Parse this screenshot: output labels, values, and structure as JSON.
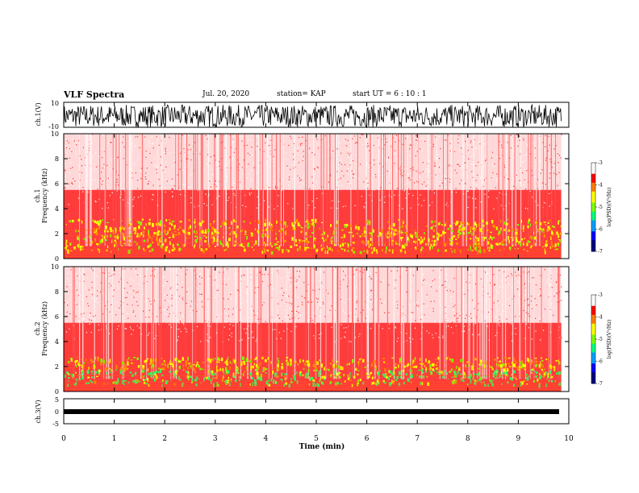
{
  "header": {
    "title": "VLF Spectra",
    "date": "Jul. 20, 2020",
    "station": "station= KAP",
    "start": "start  UT =   6  : 10 : 1"
  },
  "chart_data": [
    {
      "type": "line",
      "panel": "ch1-waveform",
      "ylabel": "ch.1(V)",
      "ylim": [
        -10,
        10
      ],
      "yticks": [
        "10",
        "-10"
      ],
      "xlim": [
        0,
        10
      ],
      "description_values": {
        "signal": "dense noise saturating between about -10 and 8 V"
      }
    },
    {
      "type": "heatmap",
      "panel": "ch1-spectrogram",
      "ylabel": "ch.1\nFrequency (kHz)",
      "ylim": [
        0,
        10
      ],
      "yticks": [
        "0",
        "2",
        "4",
        "6",
        "8",
        "10"
      ],
      "xlim": [
        0,
        10
      ],
      "intense_band_khz": [
        0.5,
        3.2
      ],
      "colorbar": {
        "label": "log(PSD)(V²/Hz)",
        "range": [
          -7,
          -3
        ],
        "ticks": [
          "-3",
          "-4",
          "-5",
          "-6",
          "-7"
        ]
      }
    },
    {
      "type": "heatmap",
      "panel": "ch2-spectrogram",
      "ylabel": "ch.2\nFrequency (kHz)",
      "ylim": [
        0,
        10
      ],
      "yticks": [
        "0",
        "2",
        "4",
        "6",
        "8",
        "10"
      ],
      "xlim": [
        0,
        10
      ],
      "intense_band_khz": [
        0.5,
        2.8
      ],
      "colorbar": {
        "label": "log(PSD)(V²/Hz)",
        "range": [
          -7,
          -3
        ],
        "ticks": [
          "-3",
          "-4",
          "-5",
          "-6",
          "-7"
        ]
      }
    },
    {
      "type": "line",
      "panel": "ch3-waveform",
      "ylabel": "ch.3(V)",
      "ylim": [
        -5,
        5
      ],
      "yticks": [
        "5",
        "0",
        "-5"
      ],
      "xlim": [
        0,
        10
      ],
      "description_values": {
        "signal": "narrow band around -1 V"
      }
    }
  ],
  "xaxis": {
    "label": "Time (min)",
    "ticks": [
      "0",
      "1",
      "2",
      "3",
      "4",
      "5",
      "6",
      "7",
      "8",
      "9",
      "10"
    ],
    "data_end_min": 9.85
  },
  "colorscale": [
    "#000080",
    "#0000ff",
    "#00a0ff",
    "#00ff80",
    "#80ff00",
    "#ffff00",
    "#ff8000",
    "#ff0000",
    "#ffffff"
  ]
}
